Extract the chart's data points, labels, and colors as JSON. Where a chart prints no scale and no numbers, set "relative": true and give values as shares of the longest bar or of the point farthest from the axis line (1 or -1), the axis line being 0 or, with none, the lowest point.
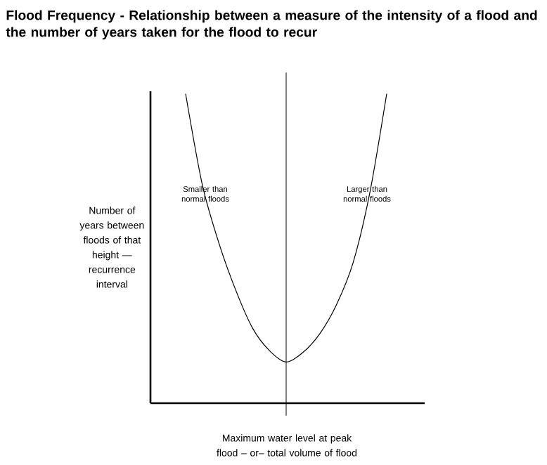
{
  "chart_data": {
    "type": "line",
    "relative": true,
    "title": "Flood Frequency - Relationship between a measure of the intensity of a flood and the number of years taken for the flood to recur",
    "xlabel": "Maximum water level at peak flood – or– total volume of flood",
    "ylabel": "Number of years between floods of that height — recurrence interval",
    "categories": [
      null,
      null,
      null,
      null,
      null,
      null,
      null,
      null,
      null,
      null,
      null,
      null,
      null
    ],
    "series": [
      {
        "color": "#000000",
        "values": [
          1,
          0.705,
          0.515,
          0.364,
          0.242,
          0.17,
          0.133,
          0.164,
          0.224,
          0.318,
          0.455,
          0.682,
          1
        ]
      }
    ],
    "annotations": [
      "Smaller than normal floods",
      "Larger than normal floods"
    ],
    "marker": "none",
    "line_style": "solid"
  }
}
